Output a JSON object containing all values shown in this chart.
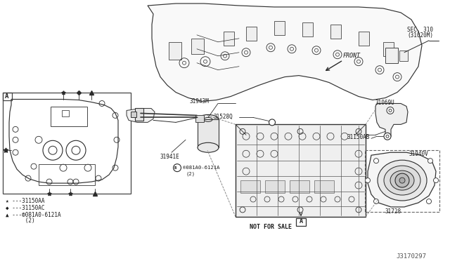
{
  "bg_color": "#ffffff",
  "diagram_id": "J3170297",
  "line_color": "#2a2a2a",
  "text_color": "#1a1a1a",
  "labels": {
    "sec310_line1": "SEC. 310",
    "sec310_line2": "(31020M)",
    "front": "FRONT",
    "p31943M": "31943M",
    "p31941E": "31941E",
    "p31528Q": "31528Q",
    "p31069U": "31069U",
    "p31150AB": "31150AB",
    "p31940V": "31940V",
    "p31728": "31728",
    "not_for_sale": "NOT FOR SALE",
    "bolt_line1": "®081A0-6121A",
    "bolt_line2": "(2)",
    "legend_star": "★ ---31150AA",
    "legend_diamond": "◆ ---31150AC",
    "legend_tri_line1": "▲ ---®081A0-6121A",
    "legend_tri_line2": "      (2)",
    "box_a": "A",
    "box_a2": "A"
  }
}
